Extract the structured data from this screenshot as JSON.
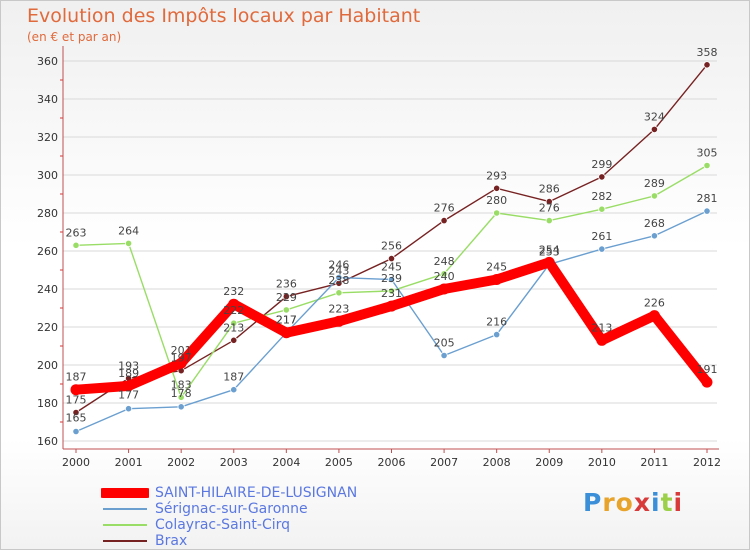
{
  "header": {
    "title": "Evolution des Impôts locaux par Habitant",
    "subtitle": "(en € et par an)"
  },
  "logo": {
    "text": "Proxiti",
    "colors": [
      "#3a8fd8",
      "#e8a32a",
      "#e8a32a",
      "#d83a3a",
      "#3a8fd8",
      "#9bd048",
      "#d83a3a"
    ]
  },
  "chart_data": {
    "type": "line",
    "title": "Evolution des Impôts locaux par Habitant",
    "subtitle": "(en € et par an)",
    "xlabel": "",
    "ylabel": "",
    "ylim": [
      160,
      360
    ],
    "ytick_step": 20,
    "yticks": [
      "160",
      "180",
      "200",
      "220",
      "240",
      "260",
      "280",
      "300",
      "320",
      "340",
      "360"
    ],
    "x": [
      "2000",
      "2001",
      "2002",
      "2003",
      "2004",
      "2005",
      "2006",
      "2007",
      "2008",
      "2009",
      "2010",
      "2011",
      "2012"
    ],
    "grid": true,
    "legend": "bottom-left",
    "series": [
      {
        "name": "SAINT-HILAIRE-DE-LUSIGNAN",
        "color": "#ff0000",
        "values": [
          187,
          189,
          201,
          232,
          217,
          223,
          231,
          240,
          245,
          254,
          213,
          226,
          191
        ]
      },
      {
        "name": "Sérignac-sur-Garonne",
        "color": "#6a9fd0",
        "values": [
          165,
          177,
          178,
          187,
          217,
          246,
          245,
          205,
          216,
          253,
          261,
          268,
          281
        ]
      },
      {
        "name": "Colayrac-Saint-Cirq",
        "color": "#99dd66",
        "values": [
          263,
          264,
          183,
          222,
          229,
          238,
          239,
          248,
          280,
          276,
          282,
          289,
          305
        ]
      },
      {
        "name": "Brax",
        "color": "#772222",
        "values": [
          175,
          193,
          197,
          213,
          236,
          243,
          256,
          276,
          293,
          286,
          299,
          324,
          358
        ]
      }
    ]
  }
}
